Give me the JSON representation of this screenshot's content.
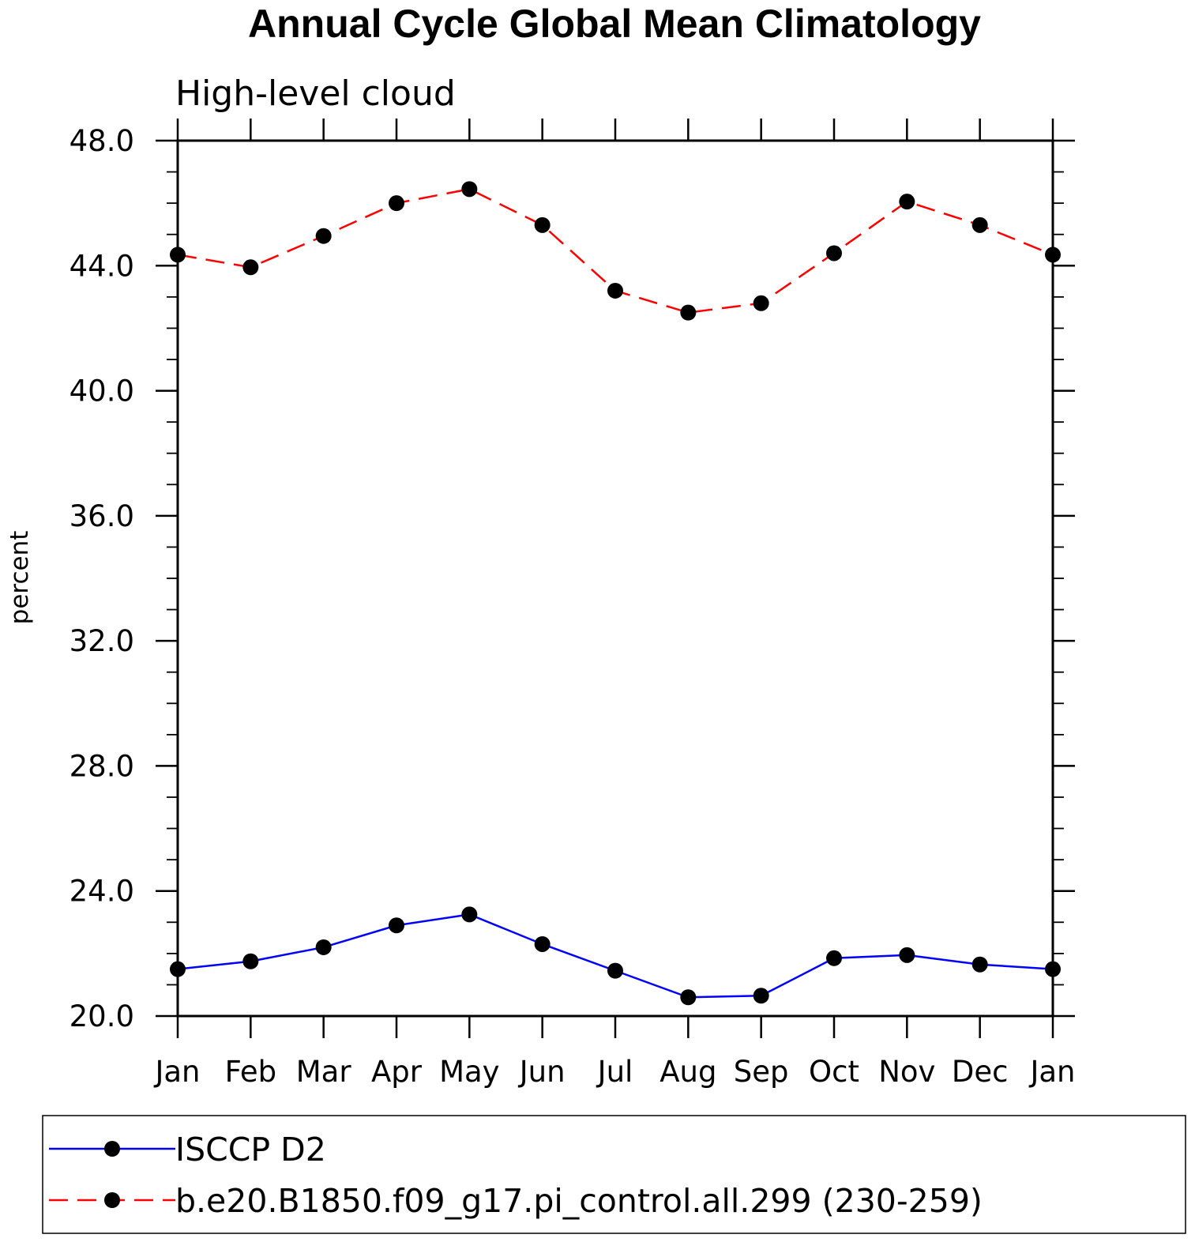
{
  "chart_data": {
    "type": "line",
    "title": "Annual Cycle Global Mean Climatology",
    "subtitle": "High-level cloud",
    "xlabel": "",
    "ylabel": "percent",
    "categories": [
      "Jan",
      "Feb",
      "Mar",
      "Apr",
      "May",
      "Jun",
      "Jul",
      "Aug",
      "Sep",
      "Oct",
      "Nov",
      "Dec",
      "Jan"
    ],
    "ylim": [
      20.0,
      48.0
    ],
    "y_ticks": [
      "20.0",
      "24.0",
      "28.0",
      "32.0",
      "36.0",
      "40.0",
      "44.0",
      "48.0"
    ],
    "grid": false,
    "legend_position": "bottom",
    "series": [
      {
        "name": "ISCCP D2",
        "color": "#0000ff",
        "line_style": "solid",
        "marker": "filled-circle",
        "values": [
          21.5,
          21.75,
          22.2,
          22.9,
          23.25,
          22.3,
          21.45,
          20.6,
          20.65,
          21.85,
          21.95,
          21.65,
          21.5
        ]
      },
      {
        "name": "b.e20.B1850.f09_g17.pi_control.all.299 (230-259)",
        "color": "#ff0000",
        "line_style": "dashed",
        "marker": "filled-circle",
        "values": [
          44.35,
          43.95,
          44.95,
          46.0,
          46.45,
          45.3,
          43.2,
          42.5,
          42.8,
          44.4,
          46.05,
          45.3,
          44.35
        ]
      }
    ]
  }
}
